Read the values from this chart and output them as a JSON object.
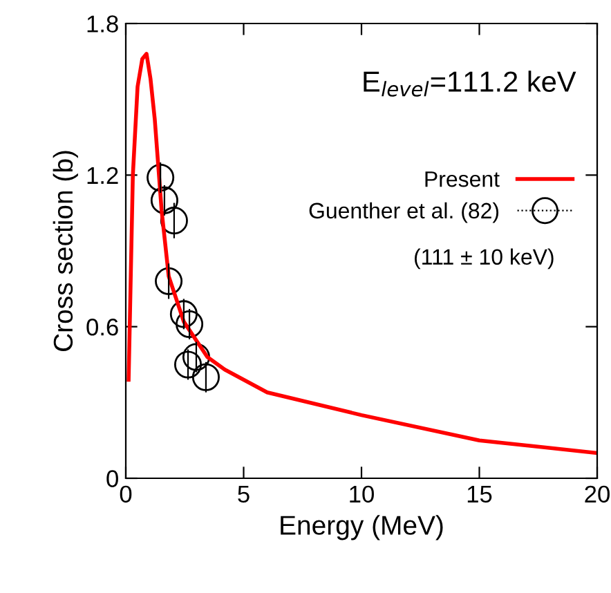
{
  "chart_data": {
    "type": "line",
    "xlabel": "Energy (MeV)",
    "ylabel": "Cross section (b)",
    "xlim": [
      0,
      20
    ],
    "ylim": [
      0,
      1.8
    ],
    "xticks": [
      0,
      5,
      10,
      15,
      20
    ],
    "yticks": [
      0,
      0.6,
      1.2,
      1.8
    ],
    "grid": false,
    "legend": "top right",
    "annotations": [
      "E$_{level}$=111.2 keV",
      "(111 ± 10 keV)"
    ],
    "series": [
      {
        "name": "Present",
        "color": "#ff0000",
        "marker": "none",
        "line_style": "solid",
        "x": [
          0.12,
          0.3,
          0.5,
          0.7,
          0.88,
          1.05,
          1.23,
          1.52,
          1.82,
          2.46,
          3.46,
          4.2,
          6,
          10,
          15,
          20
        ],
        "values": [
          0.39,
          1.2,
          1.55,
          1.66,
          1.68,
          1.58,
          1.42,
          1.06,
          0.8,
          0.62,
          0.48,
          0.43,
          0.34,
          0.25,
          0.15,
          0.1
        ]
      },
      {
        "name": "Guenther et al. (82)",
        "type": "scatter",
        "color": "#000000",
        "marker": "circle",
        "line_style": "dotted",
        "x": [
          1.47,
          1.64,
          2.05,
          1.82,
          2.46,
          2.7,
          2.64,
          2.99,
          3.4
        ],
        "values": [
          1.19,
          1.1,
          1.02,
          0.78,
          0.65,
          0.61,
          0.45,
          0.48,
          0.4
        ],
        "errors": [
          0.06,
          0.06,
          0.07,
          0.07,
          0.06,
          0.06,
          0.06,
          0.06,
          0.06
        ]
      }
    ]
  }
}
